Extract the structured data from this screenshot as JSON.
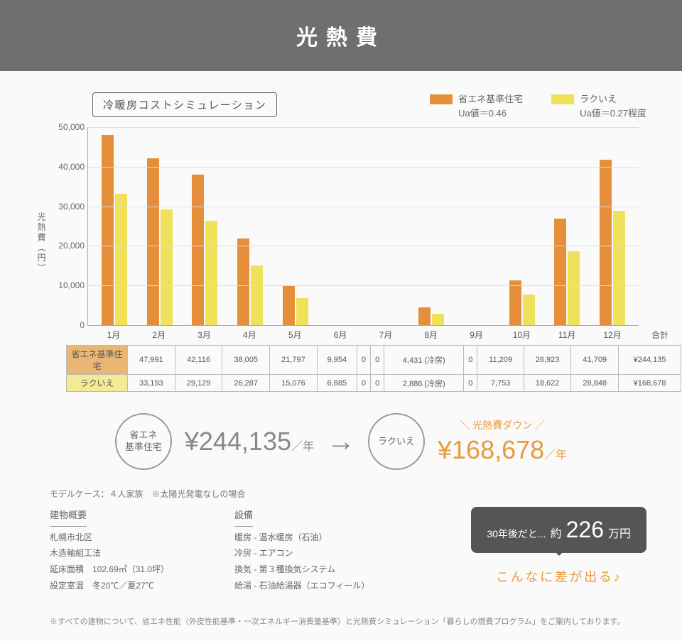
{
  "header_title": "光熱費",
  "sim_label": "冷暖房コストシミュレーション",
  "legend": {
    "a": {
      "name": "省エネ基準住宅",
      "sub": "Ua値＝0.46",
      "color": "#e58f3a"
    },
    "b": {
      "name": "ラクいえ",
      "sub": "Ua値＝0.27程度",
      "color": "#f0e15a"
    }
  },
  "chart": {
    "type": "bar",
    "y_label": "光熱費（円）",
    "y_max": 50000,
    "y_ticks": [
      0,
      10000,
      20000,
      30000,
      40000,
      50000
    ],
    "y_tick_labels": [
      "0",
      "10,000",
      "20,000",
      "30,000",
      "40,000",
      "50,000"
    ],
    "background": "#fafafa",
    "grid_color": "#dddddd",
    "axis_color": "#aaaaaa",
    "months": [
      "1月",
      "2月",
      "3月",
      "4月",
      "5月",
      "6月",
      "7月",
      "8月",
      "9月",
      "10月",
      "11月",
      "12月"
    ],
    "total_label": "合計",
    "series_a": [
      47991,
      42116,
      38005,
      21797,
      9954,
      0,
      0,
      4431,
      0,
      11209,
      26923,
      41709
    ],
    "series_b": [
      33193,
      29129,
      26287,
      15076,
      6885,
      0,
      0,
      2886,
      0,
      7753,
      18622,
      28848
    ],
    "cell_suffix": {
      "7": "(冷房)"
    }
  },
  "table": {
    "row_a": {
      "label": "省エネ基準住宅",
      "bg": "#e9b773",
      "cells": [
        "47,991",
        "42,116",
        "38,005",
        "21,797",
        "9,954",
        "0",
        "0",
        "4,431 (冷房)",
        "0",
        "11,209",
        "26,923",
        "41,709"
      ],
      "total": "¥244,135"
    },
    "row_b": {
      "label": "ラクいえ",
      "bg": "#f3ea94",
      "cells": [
        "33,193",
        "29,129",
        "26,287",
        "15,076",
        "6,885",
        "0",
        "0",
        "2,886 (冷房)",
        "0",
        "7,753",
        "18,622",
        "28,848"
      ],
      "total": "¥168,678"
    }
  },
  "summary": {
    "circle_a": "省エネ\n基準住宅",
    "price_a": "¥244,135",
    "per_year": "／年",
    "arrow": "→",
    "circle_b": "ラクいえ",
    "down_label": "＼ 光熱費ダウン ／",
    "price_b": "¥168,678"
  },
  "model_case": "モデルケース：４人家族　※太陽光発電なしの場合",
  "building": {
    "hdr": "建物概要",
    "lines": [
      "札幌市北区",
      "木造軸組工法",
      "延床面積　102.69㎡（31.0坪）",
      "設定室温　冬20℃／夏27℃"
    ]
  },
  "equipment": {
    "hdr": "設備",
    "lines": [
      "暖房 - 温水暖房（石油）",
      "冷房 - エアコン",
      "換気 - 第３種換気システム",
      "給湯 - 石油給湯器（エコフィール）"
    ]
  },
  "callout": {
    "prefix": "30年後だと...",
    "approx": "約",
    "number": "226",
    "unit": "万円"
  },
  "diff_text": "こんなに差が出る♪",
  "footnote": "※すべての建物について、省エネ性能（外皮性能基準・一次エネルギー消費量基準）と光熱費シミュレーション「暮らしの燃費プログラム」をご案内しております。"
}
